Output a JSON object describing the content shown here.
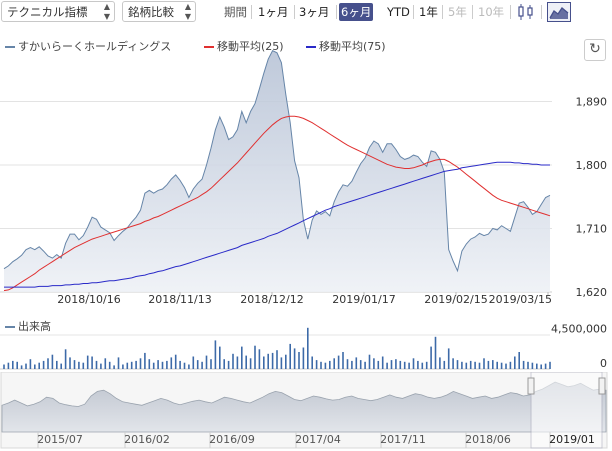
{
  "toolbar": {
    "indicator_select": "テクニカル指標",
    "compare_select": "銘柄比較",
    "period_label": "期間",
    "periods": [
      "1ヶ月",
      "3ヶ月",
      "6ヶ月",
      "YTD",
      "1年",
      "5年",
      "10年"
    ],
    "active_period": "6ヶ月",
    "disabled_periods": [
      "5年",
      "10年"
    ],
    "icons": [
      "candlestick-icon",
      "area-chart-icon"
    ],
    "active_icon": "area-chart-icon"
  },
  "legend": {
    "price": "すかいらーくホールディングス",
    "ma25": "移動平均(25)",
    "ma75": "移動平均(75)"
  },
  "volume_label": "出来高",
  "colors": {
    "price": "#6685a8",
    "ma25": "#e03030",
    "ma75": "#2a2ac8",
    "accent": "#46508c",
    "volume": "#3d6aa8"
  },
  "chart_data": [
    {
      "type": "area",
      "title": "",
      "ylim": [
        1620,
        1980
      ],
      "y_ticks": [
        1620,
        1710,
        1800,
        1890
      ],
      "y_tick_labels": [
        "1,620",
        "1,710",
        "1,800",
        "1,890"
      ],
      "x_ticks": [
        "2018/10/16",
        "2018/11/13",
        "2018/12/12",
        "2019/01/17",
        "2019/02/15",
        "2019/03/15"
      ],
      "grid": true,
      "series": [
        {
          "name": "すかいらーくホールディングス",
          "values": [
            1653,
            1657,
            1663,
            1667,
            1672,
            1680,
            1683,
            1680,
            1684,
            1678,
            1671,
            1668,
            1673,
            1668,
            1689,
            1702,
            1702,
            1694,
            1700,
            1712,
            1726,
            1723,
            1712,
            1708,
            1704,
            1693,
            1700,
            1706,
            1711,
            1719,
            1726,
            1736,
            1760,
            1764,
            1760,
            1764,
            1766,
            1772,
            1780,
            1786,
            1778,
            1768,
            1754,
            1766,
            1774,
            1780,
            1800,
            1824,
            1850,
            1868,
            1854,
            1836,
            1840,
            1850,
            1876,
            1860,
            1876,
            1887,
            1908,
            1930,
            1950,
            1962,
            1959,
            1945,
            1900,
            1860,
            1806,
            1782,
            1722,
            1695,
            1722,
            1735,
            1730,
            1734,
            1728,
            1748,
            1762,
            1772,
            1770,
            1777,
            1790,
            1802,
            1810,
            1825,
            1834,
            1830,
            1818,
            1830,
            1830,
            1822,
            1812,
            1808,
            1810,
            1814,
            1812,
            1804,
            1798,
            1820,
            1818,
            1808,
            1790,
            1680,
            1664,
            1650,
            1678,
            1688,
            1695,
            1698,
            1703,
            1700,
            1702,
            1710,
            1708,
            1714,
            1710,
            1706,
            1726,
            1746,
            1748,
            1740,
            1730,
            1734,
            1744,
            1754,
            1757
          ]
        },
        {
          "name": "移動平均(25)",
          "values": [
            1622,
            1623,
            1626,
            1630,
            1634,
            1638,
            1642,
            1646,
            1651,
            1655,
            1659,
            1663,
            1667,
            1671,
            1675,
            1679,
            1683,
            1686,
            1689,
            1692,
            1695,
            1697,
            1699,
            1701,
            1703,
            1705,
            1707,
            1709,
            1711,
            1713,
            1715,
            1717,
            1720,
            1722,
            1725,
            1727,
            1730,
            1733,
            1736,
            1739,
            1742,
            1745,
            1748,
            1751,
            1754,
            1758,
            1762,
            1767,
            1773,
            1779,
            1785,
            1791,
            1797,
            1803,
            1810,
            1817,
            1824,
            1831,
            1838,
            1845,
            1851,
            1857,
            1862,
            1866,
            1868,
            1869,
            1869,
            1868,
            1866,
            1863,
            1860,
            1856,
            1852,
            1848,
            1844,
            1840,
            1836,
            1832,
            1828,
            1825,
            1822,
            1819,
            1816,
            1813,
            1810,
            1807,
            1804,
            1801,
            1799,
            1797,
            1796,
            1795,
            1795,
            1796,
            1798,
            1800,
            1803,
            1805,
            1807,
            1808,
            1808,
            1805,
            1801,
            1797,
            1792,
            1787,
            1782,
            1777,
            1772,
            1767,
            1762,
            1757,
            1753,
            1750,
            1748,
            1746,
            1744,
            1742,
            1740,
            1738,
            1736,
            1734,
            1732,
            1730,
            1728
          ]
        },
        {
          "name": "移動平均(75)",
          "values": [
            1627,
            1627,
            1627,
            1627,
            1627,
            1627,
            1627,
            1627,
            1628,
            1628,
            1628,
            1629,
            1629,
            1629,
            1630,
            1630,
            1631,
            1631,
            1632,
            1632,
            1633,
            1633,
            1634,
            1635,
            1636,
            1636,
            1637,
            1638,
            1639,
            1640,
            1642,
            1643,
            1644,
            1646,
            1647,
            1649,
            1650,
            1652,
            1654,
            1656,
            1657,
            1659,
            1661,
            1663,
            1665,
            1667,
            1669,
            1671,
            1673,
            1675,
            1677,
            1679,
            1681,
            1683,
            1686,
            1688,
            1690,
            1692,
            1694,
            1696,
            1699,
            1701,
            1703,
            1706,
            1709,
            1712,
            1715,
            1718,
            1721,
            1724,
            1727,
            1730,
            1733,
            1736,
            1738,
            1741,
            1743,
            1745,
            1747,
            1749,
            1751,
            1753,
            1755,
            1757,
            1759,
            1761,
            1763,
            1765,
            1767,
            1769,
            1771,
            1773,
            1775,
            1777,
            1779,
            1781,
            1783,
            1785,
            1787,
            1789,
            1791,
            1792,
            1793,
            1794,
            1796,
            1797,
            1798,
            1799,
            1800,
            1801,
            1802,
            1803,
            1804,
            1804,
            1804,
            1804,
            1803,
            1803,
            1802,
            1802,
            1801,
            1801,
            1800,
            1800,
            1800
          ]
        }
      ]
    },
    {
      "type": "bar",
      "title": "出来高",
      "ylim": [
        0,
        5700000
      ],
      "y_ticks": [
        0,
        4500000
      ],
      "y_tick_labels": [
        "0",
        "4,500,000"
      ],
      "series": [
        {
          "name": "出来高",
          "values": [
            500000,
            700000,
            900000,
            800000,
            400000,
            600000,
            1100000,
            500000,
            700000,
            900000,
            1200000,
            1600000,
            900000,
            600000,
            2200000,
            1300000,
            1000000,
            800000,
            700000,
            1500000,
            1400000,
            900000,
            600000,
            1200000,
            800000,
            400000,
            1300000,
            500000,
            700000,
            800000,
            900000,
            1200000,
            1800000,
            1100000,
            700000,
            1000000,
            800000,
            900000,
            1300000,
            1600000,
            900000,
            700000,
            500000,
            1400000,
            1000000,
            800000,
            1500000,
            1100000,
            3200000,
            2500000,
            1100000,
            900000,
            1700000,
            1400000,
            2500000,
            1500000,
            1200000,
            2600000,
            2200000,
            1400000,
            1700000,
            1800000,
            2100000,
            1300000,
            1600000,
            2800000,
            2300000,
            1900000,
            2400000,
            4600000,
            1400000,
            1000000,
            800000,
            700000,
            900000,
            1200000,
            1500000,
            1900000,
            1100000,
            900000,
            1300000,
            1000000,
            800000,
            1600000,
            1200000,
            900000,
            1400000,
            700000,
            1000000,
            1100000,
            900000,
            800000,
            700000,
            1200000,
            900000,
            700000,
            800000,
            2500000,
            3600000,
            1300000,
            900000,
            2300000,
            1200000,
            1000000,
            800000,
            700000,
            900000,
            800000,
            700000,
            1200000,
            900000,
            1000000,
            800000,
            700000,
            600000,
            800000,
            1400000,
            1900000,
            900000,
            800000,
            700000,
            600000,
            500000,
            600000,
            800000
          ]
        }
      ]
    },
    {
      "type": "area",
      "title": "",
      "x_ticks": [
        "2015/07",
        "2016/02",
        "2016/09",
        "2017/04",
        "2017/11",
        "2018/06",
        "2019/01"
      ],
      "series": [
        {
          "name": "すかいらーくホールディングス",
          "values": [
            0.46,
            0.5,
            0.55,
            0.5,
            0.45,
            0.48,
            0.52,
            0.6,
            0.58,
            0.5,
            0.47,
            0.45,
            0.44,
            0.48,
            0.62,
            0.7,
            0.72,
            0.66,
            0.58,
            0.52,
            0.5,
            0.48,
            0.46,
            0.5,
            0.54,
            0.58,
            0.55,
            0.5,
            0.47,
            0.5,
            0.53,
            0.55,
            0.52,
            0.5,
            0.55,
            0.6,
            0.58,
            0.55,
            0.52,
            0.5,
            0.55,
            0.6,
            0.66,
            0.7,
            0.68,
            0.62,
            0.56,
            0.54,
            0.58,
            0.62,
            0.6,
            0.57,
            0.55,
            0.56,
            0.6,
            0.62,
            0.58,
            0.56,
            0.54,
            0.56,
            0.6,
            0.64,
            0.6,
            0.58,
            0.62,
            0.66,
            0.64,
            0.6,
            0.58,
            0.6,
            0.64,
            0.7,
            0.66,
            0.62,
            0.58,
            0.6,
            0.62,
            0.58,
            0.6,
            0.64,
            0.68,
            0.66,
            0.62,
            0.64,
            0.7,
            0.74,
            0.8,
            0.86,
            0.82,
            0.78,
            0.8,
            0.84,
            0.78,
            0.72,
            0.74,
            0.72
          ]
        }
      ]
    }
  ]
}
